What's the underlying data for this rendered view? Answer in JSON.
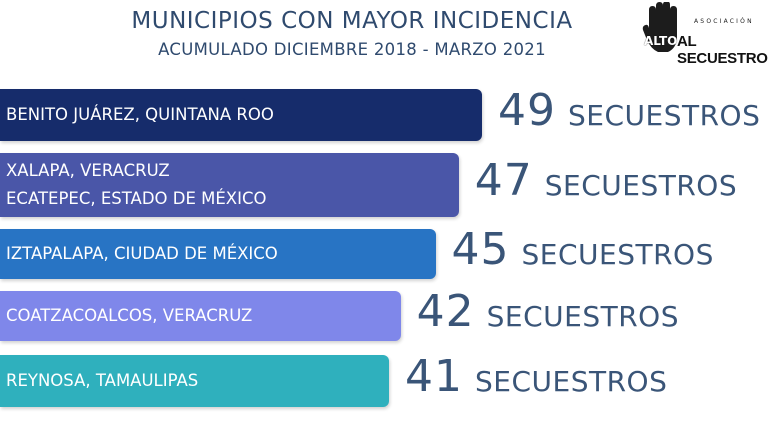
{
  "chart_data": {
    "type": "bar",
    "orientation": "horizontal",
    "title": "MUNICIPIOS CON MAYOR INCIDENCIA",
    "subtitle": "ACUMULADO DICIEMBRE 2018 - MARZO 2021",
    "unit_label": "SECUESTROS",
    "categories": [
      [
        "BENITO JUÁREZ, QUINTANA ROO"
      ],
      [
        "XALAPA, VERACRUZ",
        "ECATEPEC, ESTADO DE MÉXICO"
      ],
      [
        "IZTAPALAPA, CIUDAD DE MÉXICO"
      ],
      [
        "COATZACOALCOS, VERACRUZ"
      ],
      [
        "REYNOSA, TAMAULIPAS"
      ]
    ],
    "values": [
      49,
      47,
      45,
      42,
      41
    ],
    "colors": [
      "#162c6b",
      "#4a56a8",
      "#2874c4",
      "#7f87ea",
      "#2fb0bd"
    ],
    "legend": "none",
    "grid": false
  },
  "logo": {
    "small_text": "ASOCIACIÓN",
    "word1": "ALTO",
    "word2": "AL SECUESTRO"
  }
}
